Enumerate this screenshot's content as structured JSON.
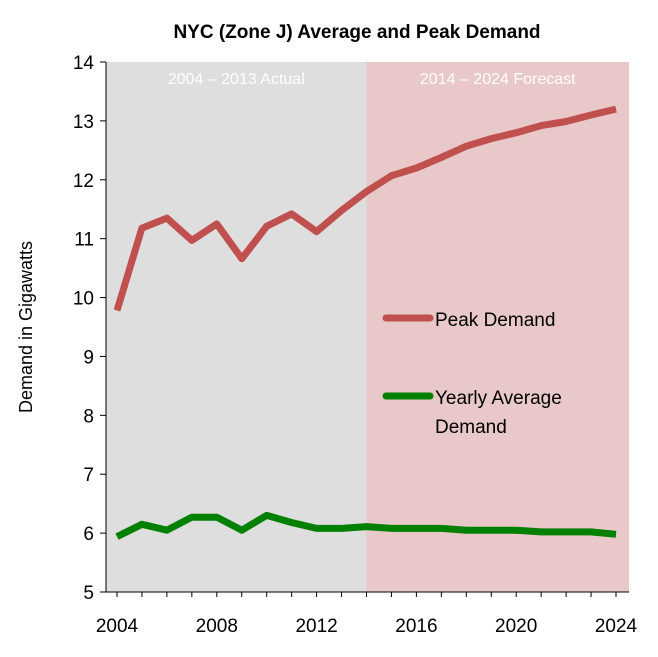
{
  "chart_data": {
    "type": "line",
    "title": "NYC (Zone J) Average and Peak Demand",
    "xlabel": "",
    "ylabel": "Demand in Gigawatts",
    "x": [
      2004,
      2005,
      2006,
      2007,
      2008,
      2009,
      2010,
      2011,
      2012,
      2013,
      2014,
      2015,
      2016,
      2017,
      2018,
      2019,
      2020,
      2021,
      2022,
      2023,
      2024
    ],
    "xlim": [
      2004,
      2024
    ],
    "ylim": [
      5,
      14
    ],
    "x_ticks": [
      "2004",
      "2008",
      "2012",
      "2016",
      "2020",
      "2024"
    ],
    "y_ticks": [
      "5",
      "6",
      "7",
      "8",
      "9",
      "10",
      "11",
      "12",
      "13",
      "14"
    ],
    "grid": false,
    "legend_position": "right-center",
    "regions": [
      {
        "label": "2004 – 2013 Actual",
        "from": 2004,
        "to": 2014,
        "color": "#dedede"
      },
      {
        "label": "2014 – 2024 Forecast",
        "from": 2014,
        "to": 2024,
        "color": "#e8c8c8"
      }
    ],
    "series": [
      {
        "name": "Peak Demand",
        "color": "#c0504d",
        "values": [
          9.78,
          11.18,
          11.35,
          10.97,
          11.25,
          10.66,
          11.21,
          11.42,
          11.12,
          11.48,
          11.8,
          12.07,
          12.2,
          12.38,
          12.57,
          12.7,
          12.8,
          12.92,
          12.99,
          13.1,
          13.2
        ]
      },
      {
        "name": "Yearly Average Demand",
        "color": "#008000",
        "values": [
          5.94,
          6.15,
          6.05,
          6.27,
          6.27,
          6.05,
          6.3,
          6.18,
          6.08,
          6.08,
          6.11,
          6.08,
          6.08,
          6.08,
          6.05,
          6.05,
          6.05,
          6.02,
          6.02,
          6.02,
          5.98
        ]
      }
    ],
    "legend": [
      {
        "line1": "Peak Demand",
        "line2": ""
      },
      {
        "line1": "Yearly Average",
        "line2": "Demand"
      }
    ]
  }
}
